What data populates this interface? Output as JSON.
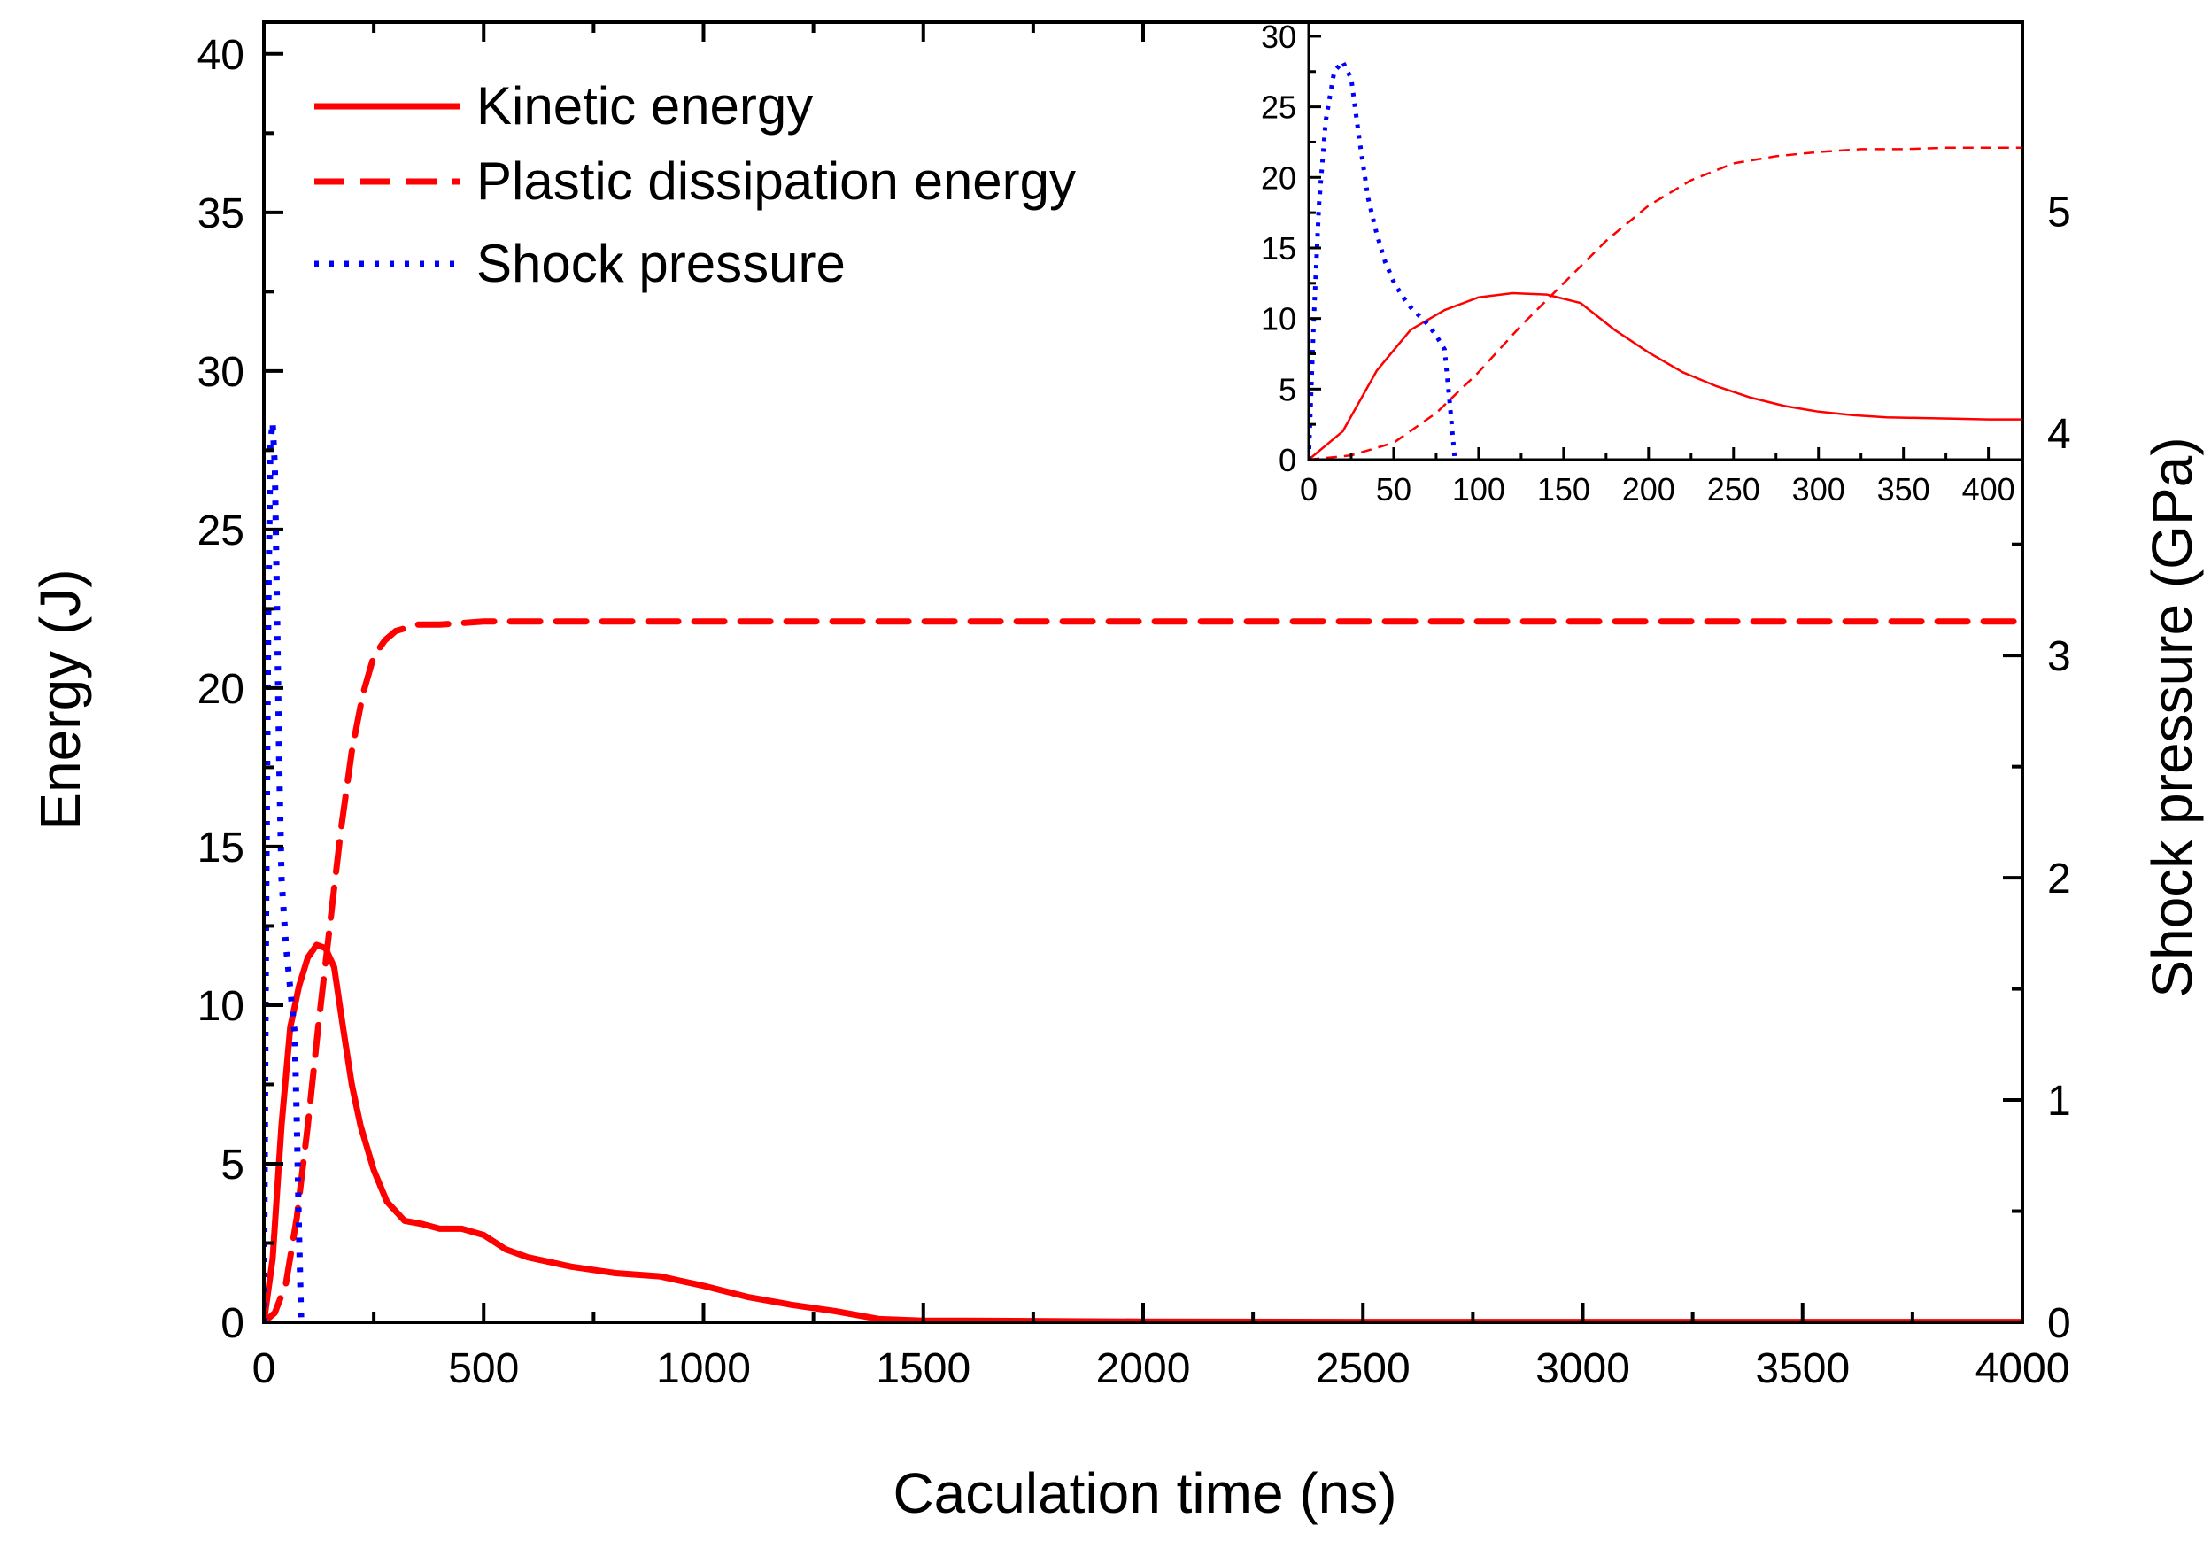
{
  "chart_data": [
    {
      "type": "line",
      "role": "main",
      "xlabel": "Caculation time (ns)",
      "ylabel": "Energy (J)",
      "y2label": "Shock pressure (GPa)",
      "xlim": [
        0,
        4000
      ],
      "ylim": [
        0,
        41
      ],
      "y2lim": [
        0,
        5.85
      ],
      "xticks": [
        0,
        500,
        1000,
        1500,
        2000,
        2500,
        3000,
        3500,
        4000
      ],
      "yticks": [
        0,
        5,
        10,
        15,
        20,
        25,
        30,
        35,
        40
      ],
      "y2ticks": [
        0,
        1,
        2,
        3,
        4,
        5
      ],
      "legend_position": "top-left",
      "legend": [
        {
          "label": "Kinetic energy",
          "style": "solid"
        },
        {
          "label": "Plastic dissipation energy",
          "style": "dashed"
        },
        {
          "label": "Shock pressure",
          "style": "dotted"
        }
      ],
      "series": [
        {
          "name": "Kinetic energy",
          "axis": "left",
          "color": "#ff0000",
          "style": "solid",
          "x": [
            0,
            20,
            40,
            60,
            80,
            100,
            120,
            140,
            160,
            180,
            200,
            220,
            250,
            280,
            320,
            360,
            400,
            450,
            500,
            550,
            600,
            700,
            800,
            900,
            1000,
            1100,
            1200,
            1300,
            1400,
            1500,
            1600,
            2000,
            2500,
            3000,
            3500,
            4000
          ],
          "y": [
            0,
            2,
            6.2,
            9.3,
            10.6,
            11.5,
            11.9,
            11.8,
            11.2,
            9.3,
            7.5,
            6.2,
            4.8,
            3.8,
            3.2,
            3.1,
            2.95,
            2.95,
            2.75,
            2.3,
            2.05,
            1.75,
            1.55,
            1.45,
            1.15,
            0.8,
            0.55,
            0.35,
            0.1,
            0.05,
            0.05,
            0.02,
            0.01,
            0.01,
            0.01,
            0.01
          ]
        },
        {
          "name": "Plastic dissipation energy",
          "axis": "left",
          "color": "#ff0000",
          "style": "dashed",
          "x": [
            0,
            25,
            50,
            75,
            100,
            125,
            150,
            175,
            200,
            225,
            250,
            275,
            300,
            350,
            400,
            500,
            600,
            800,
            1000,
            1500,
            2000,
            2500,
            3000,
            3500,
            4000
          ],
          "y": [
            0,
            0.3,
            1.2,
            3.3,
            6.2,
            9.5,
            12.5,
            15.5,
            18.0,
            19.8,
            21.0,
            21.5,
            21.8,
            22.0,
            22.0,
            22.1,
            22.1,
            22.1,
            22.1,
            22.1,
            22.1,
            22.1,
            22.1,
            22.1,
            22.1
          ]
        },
        {
          "name": "Shock pressure",
          "axis": "right",
          "color": "#0000ff",
          "style": "dotted",
          "x": [
            0,
            5,
            10,
            15,
            20,
            25,
            30,
            35,
            40,
            50,
            60,
            70,
            75,
            80,
            85
          ],
          "y": [
            0,
            1.8,
            3.2,
            3.95,
            4.05,
            3.85,
            3.2,
            2.5,
            2.0,
            1.7,
            1.5,
            1.3,
            0.9,
            0.4,
            0
          ]
        }
      ]
    },
    {
      "type": "line",
      "role": "inset",
      "xlim": [
        0,
        420
      ],
      "ylim": [
        0,
        31
      ],
      "xticks": [
        0,
        50,
        100,
        150,
        200,
        250,
        300,
        350,
        400
      ],
      "yticks": [
        0,
        5,
        10,
        15,
        20,
        25,
        30
      ],
      "series": [
        {
          "name": "Kinetic energy",
          "color": "#ff0000",
          "style": "solid",
          "x": [
            0,
            20,
            40,
            60,
            80,
            100,
            120,
            140,
            160,
            180,
            200,
            220,
            240,
            260,
            280,
            300,
            320,
            340,
            360,
            380,
            400,
            420
          ],
          "y": [
            0,
            2,
            6.3,
            9.2,
            10.6,
            11.5,
            11.8,
            11.7,
            11.1,
            9.2,
            7.6,
            6.2,
            5.2,
            4.4,
            3.8,
            3.4,
            3.15,
            3.0,
            2.95,
            2.9,
            2.85,
            2.85
          ]
        },
        {
          "name": "Plastic dissipation energy",
          "color": "#ff0000",
          "style": "dashed",
          "x": [
            0,
            25,
            50,
            75,
            100,
            125,
            150,
            175,
            200,
            225,
            250,
            275,
            300,
            325,
            350,
            375,
            400,
            420
          ],
          "y": [
            0,
            0.3,
            1.2,
            3.3,
            6.2,
            9.5,
            12.5,
            15.5,
            18.0,
            19.8,
            21.0,
            21.5,
            21.8,
            22.0,
            22.0,
            22.1,
            22.1,
            22.1
          ]
        },
        {
          "name": "Shock pressure",
          "color": "#0000ff",
          "style": "dotted",
          "x": [
            0,
            3,
            6,
            10,
            15,
            20,
            25,
            30,
            35,
            40,
            45,
            50,
            55,
            60,
            65,
            70,
            75,
            80,
            83,
            86
          ],
          "y": [
            0,
            10,
            18,
            24,
            27.5,
            28.2,
            27,
            22.5,
            18.5,
            16,
            14,
            12.6,
            11.6,
            10.8,
            10.2,
            9.6,
            8.8,
            7.8,
            4,
            0
          ]
        }
      ]
    }
  ]
}
